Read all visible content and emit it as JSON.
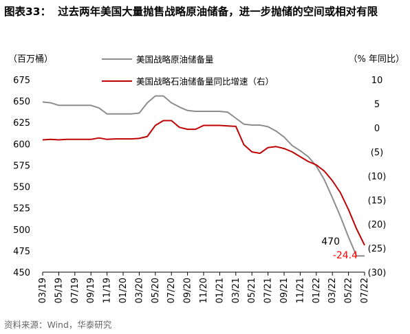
{
  "title": {
    "label": "图表33：",
    "text": "过去两年美国大量抛售战略原油储备，进一步抛储的空间或相对有限"
  },
  "left_unit": "（百万桶）",
  "right_unit": "（% 年同比）",
  "source": "资料来源：Wind，华泰研究",
  "chart_data": {
    "type": "line",
    "title": "过去两年美国大量抛售战略原油储备，进一步抛储的空间或相对有限",
    "x": [
      "03/19",
      "04/19",
      "05/19",
      "06/19",
      "07/19",
      "08/19",
      "09/19",
      "10/19",
      "11/19",
      "12/19",
      "01/20",
      "02/20",
      "03/20",
      "04/20",
      "05/20",
      "06/20",
      "07/20",
      "08/20",
      "09/20",
      "10/20",
      "11/20",
      "12/20",
      "01/21",
      "02/21",
      "03/21",
      "04/21",
      "05/21",
      "06/21",
      "07/21",
      "08/21",
      "09/21",
      "10/21",
      "11/21",
      "12/21",
      "01/22",
      "02/22",
      "03/22",
      "04/22",
      "05/22",
      "06/22",
      "07/22"
    ],
    "xticks": [
      "03/19",
      "05/19",
      "07/19",
      "09/19",
      "11/19",
      "01/20",
      "03/20",
      "05/20",
      "07/20",
      "09/20",
      "11/20",
      "01/21",
      "03/21",
      "05/21",
      "07/21",
      "09/21",
      "11/21",
      "01/22",
      "03/22",
      "05/22",
      "07/22"
    ],
    "left_axis": {
      "label": "百万桶",
      "ylim": [
        450,
        675
      ],
      "ticks": [
        450,
        475,
        500,
        525,
        550,
        575,
        600,
        625,
        650,
        675
      ]
    },
    "right_axis": {
      "label": "% 年同比",
      "ylim": [
        -30,
        10
      ],
      "ticks": [
        10,
        5,
        0,
        -5,
        -10,
        -15,
        -20,
        -25,
        -30
      ],
      "tick_labels": [
        "10",
        "5",
        "0",
        "(5)",
        "(10)",
        "(15)",
        "(20)",
        "(25)",
        "(30)"
      ]
    },
    "series": [
      {
        "name": "美国战略原油储备量",
        "axis": "left",
        "color": "#8c8c8c",
        "values": [
          649,
          648,
          645,
          645,
          645,
          645,
          645,
          642,
          635,
          635,
          635,
          635,
          636,
          648,
          656,
          656,
          648,
          643,
          639,
          638,
          638,
          638,
          638,
          637,
          630,
          623,
          622,
          622,
          620,
          615,
          608,
          598,
          592,
          585,
          574,
          558,
          537,
          515,
          491,
          469,
          469
        ]
      },
      {
        "name": "美国战略石油储备量同比增速（右）",
        "axis": "right",
        "color": "#c00000",
        "values": [
          -2.5,
          -2.4,
          -2.5,
          -2.4,
          -2.4,
          -2.4,
          -2.4,
          -2.1,
          -2.4,
          -2.3,
          -2.3,
          -2.3,
          -2.2,
          -1.8,
          0.5,
          1.5,
          1.5,
          0.1,
          -0.3,
          -0.3,
          0.5,
          0.5,
          0.5,
          0.4,
          0.3,
          -3.5,
          -5.0,
          -5.3,
          -4.1,
          -3.9,
          -4.3,
          -5.0,
          -6.0,
          -7.0,
          -7.7,
          -9.0,
          -11.0,
          -13.5,
          -17.0,
          -21.0,
          -24.4
        ]
      }
    ],
    "annotations": [
      {
        "text": "470",
        "series": "美国战略原油储备量",
        "color": "#000000"
      },
      {
        "text": "-24.4",
        "series": "美国战略石油储备量同比增速（右）",
        "color": "#ff0000"
      }
    ],
    "legend": [
      "美国战略原油储备量",
      "美国战略石油储备量同比增速（右）"
    ],
    "legend_position": "top",
    "grid": false
  }
}
